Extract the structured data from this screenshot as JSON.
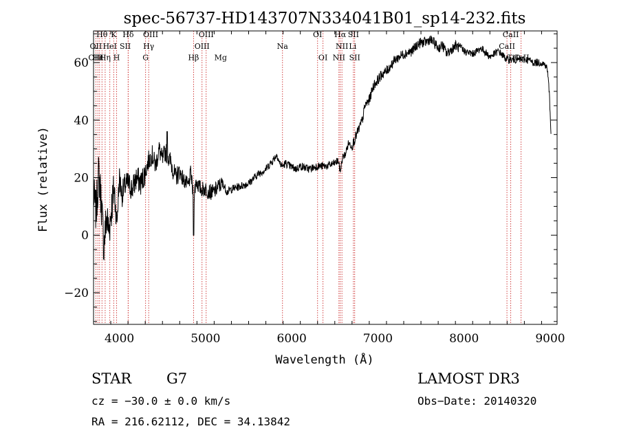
{
  "chart_data": {
    "type": "line",
    "title": "spec-56737-HD143707N334041B01_sp14-232.fits",
    "xlabel": "Wavelength (Å)",
    "ylabel": "Flux (relative)",
    "xlim": [
      3700,
      9080
    ],
    "ylim": [
      -31,
      71
    ],
    "x_ticks": [
      4000,
      5000,
      6000,
      7000,
      8000,
      9000
    ],
    "x_tick_labels": [
      "4000",
      "5000",
      "6000",
      "7000",
      "8000",
      "9000"
    ],
    "y_ticks": [
      -20,
      0,
      20,
      40,
      60
    ],
    "y_tick_labels": [
      "−20",
      "0",
      "20",
      "40",
      "60"
    ],
    "grid": false,
    "series": [
      {
        "name": "spectrum",
        "x": [
          3700,
          3730,
          3760,
          3790,
          3820,
          3850,
          3880,
          3910,
          3940,
          3970,
          4000,
          4030,
          4060,
          4100,
          4150,
          4200,
          4250,
          4300,
          4340,
          4380,
          4420,
          4460,
          4500,
          4530,
          4560,
          4600,
          4650,
          4700,
          4750,
          4800,
          4830,
          4861,
          4890,
          4920,
          4950,
          5000,
          5050,
          5100,
          5150,
          5200,
          5250,
          5300,
          5400,
          5500,
          5600,
          5700,
          5780,
          5830,
          5860,
          5893,
          5930,
          5980,
          6050,
          6100,
          6200,
          6300,
          6400,
          6500,
          6540,
          6563,
          6590,
          6620,
          6660,
          6700,
          6740,
          6780,
          6820,
          6850,
          6900,
          6950,
          7000,
          7050,
          7100,
          7150,
          7200,
          7300,
          7400,
          7450,
          7500,
          7550,
          7600,
          7650,
          7700,
          7750,
          7800,
          7900,
          8000,
          8100,
          8200,
          8300,
          8400,
          8498,
          8542,
          8600,
          8662,
          8700,
          8750,
          8800,
          8850,
          8900,
          8950,
          8970,
          8990,
          9010
        ],
        "values": [
          14,
          8,
          22,
          12,
          -4,
          6,
          2,
          10,
          16,
          4,
          20,
          14,
          17,
          18,
          16,
          20,
          18,
          22,
          26,
          28,
          24,
          30,
          26,
          29,
          28,
          25,
          20,
          22,
          19,
          17,
          22,
          12,
          19,
          17,
          16,
          16,
          15,
          15,
          17,
          18,
          15,
          16,
          17,
          18,
          21,
          23,
          26,
          28,
          25,
          24,
          25,
          24,
          23,
          24,
          23,
          24,
          24,
          25,
          26,
          22,
          27,
          28,
          32,
          31,
          34,
          37,
          40,
          45,
          47,
          52,
          54,
          56,
          57,
          59,
          61,
          63,
          64,
          66,
          67,
          67,
          68,
          67,
          65,
          66,
          63,
          66,
          64,
          63,
          65,
          62,
          64,
          61,
          61,
          61,
          61,
          61,
          61,
          60,
          60,
          60,
          59,
          57,
          49,
          35
        ]
      }
    ],
    "lines": {
      "emission_x": [
        3727,
        4102,
        4861,
        4959,
        5007,
        5893,
        6300,
        6363,
        6548,
        6563,
        6583,
        6716,
        6731,
        8498,
        8542,
        8662
      ],
      "absorption_x": [
        3750,
        3770,
        3798,
        3835,
        3889,
        3934,
        3968,
        4102,
        4304,
        4340
      ],
      "labels": [
        {
          "text": "Hθ",
          "x": 3798,
          "y": 68.8
        },
        {
          "text": "K",
          "x": 3934,
          "y": 68.8
        },
        {
          "text": "Hδ",
          "x": 4102,
          "y": 68.8
        },
        {
          "text": "OIII",
          "x": 4363,
          "y": 68.8
        },
        {
          "text": "OIII",
          "x": 5007,
          "y": 68.8
        },
        {
          "text": "OI",
          "x": 6300,
          "y": 68.8
        },
        {
          "text": "Hα",
          "x": 6563,
          "y": 68.8
        },
        {
          "text": "SII",
          "x": 6716,
          "y": 68.8
        },
        {
          "text": "CaII",
          "x": 8542,
          "y": 68.8
        },
        {
          "text": "OII",
          "x": 3727,
          "y": 64.8
        },
        {
          "text": "HeI",
          "x": 3889,
          "y": 64.8
        },
        {
          "text": "SII",
          "x": 4068,
          "y": 64.8
        },
        {
          "text": "Hγ",
          "x": 4340,
          "y": 64.8
        },
        {
          "text": "OIII",
          "x": 4959,
          "y": 64.8
        },
        {
          "text": "Na",
          "x": 5893,
          "y": 64.8
        },
        {
          "text": "NII",
          "x": 6583,
          "y": 64.8
        },
        {
          "text": "Li",
          "x": 6708,
          "y": 64.8
        },
        {
          "text": "CaII",
          "x": 8498,
          "y": 64.8
        },
        {
          "text": "OIII",
          "x": 3727,
          "y": 60.8
        },
        {
          "text": "Hε",
          "x": 3750,
          "y": 60.8
        },
        {
          "text": "Hη",
          "x": 3835,
          "y": 60.8
        },
        {
          "text": "H",
          "x": 3968,
          "y": 60.8
        },
        {
          "text": "G",
          "x": 4304,
          "y": 60.8
        },
        {
          "text": "Hβ",
          "x": 4861,
          "y": 60.8
        },
        {
          "text": "Mg",
          "x": 5175,
          "y": 60.8
        },
        {
          "text": "OI",
          "x": 6363,
          "y": 60.8
        },
        {
          "text": "NII",
          "x": 6548,
          "y": 60.8
        },
        {
          "text": "SII",
          "x": 6731,
          "y": 60.8
        },
        {
          "text": "TiO",
          "x": 8580,
          "y": 60.8
        },
        {
          "text": "CaII",
          "x": 8662,
          "y": 60.8
        }
      ]
    }
  },
  "info": {
    "object_class": "STAR",
    "subclass": "G7",
    "survey": "LAMOST DR3",
    "redshift": "cz = −30.0 ± 0.0 km/s",
    "obs_date": "Obs−Date: 20140320",
    "coords": "RA = 216.62112, DEC =  34.13842"
  },
  "colors": {
    "spectrum": "#000000",
    "emission_line": "#cc2a2a",
    "absorption_line": "#cc2a2a",
    "axes": "#000000"
  }
}
